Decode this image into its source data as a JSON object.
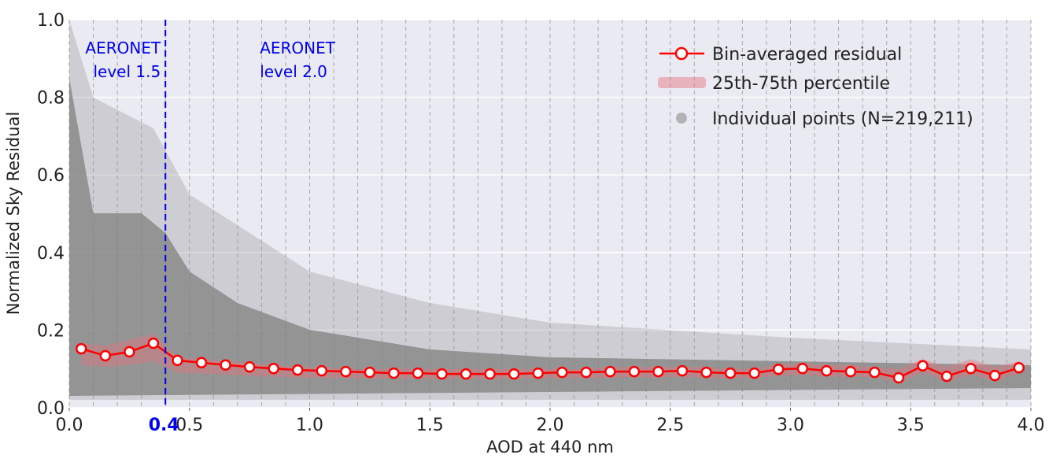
{
  "chart_data": {
    "type": "line",
    "xlabel": "AOD at 440 nm",
    "ylabel": "Normalized Sky Residual",
    "x": [
      0.05,
      0.15,
      0.25,
      0.35,
      0.45,
      0.55,
      0.65,
      0.75,
      0.85,
      0.95,
      1.05,
      1.15,
      1.25,
      1.35,
      1.45,
      1.55,
      1.65,
      1.75,
      1.85,
      1.95,
      2.05,
      2.15,
      2.25,
      2.35,
      2.45,
      2.55,
      2.65,
      2.75,
      2.85,
      2.95,
      3.05,
      3.15,
      3.25,
      3.35,
      3.45,
      3.55,
      3.65,
      3.75,
      3.85,
      3.95
    ],
    "series": [
      {
        "name": "Bin-averaged residual",
        "color": "#ff0000",
        "values": [
          0.152,
          0.134,
          0.144,
          0.166,
          0.122,
          0.116,
          0.11,
          0.105,
          0.101,
          0.097,
          0.095,
          0.093,
          0.091,
          0.089,
          0.089,
          0.087,
          0.087,
          0.087,
          0.087,
          0.089,
          0.091,
          0.091,
          0.093,
          0.093,
          0.093,
          0.095,
          0.091,
          0.089,
          0.089,
          0.099,
          0.101,
          0.095,
          0.093,
          0.091,
          0.077,
          0.108,
          0.081,
          0.101,
          0.083,
          0.103
        ]
      }
    ],
    "band": {
      "name": "25th-75th percentile",
      "color": "#e8707a",
      "upper": [
        0.165,
        0.16,
        0.175,
        0.19,
        0.13,
        0.125,
        0.12,
        0.115,
        0.11,
        0.105,
        0.105,
        0.1,
        0.1,
        0.1,
        0.1,
        0.1,
        0.1,
        0.1,
        0.1,
        0.1,
        0.1,
        0.1,
        0.105,
        0.105,
        0.105,
        0.105,
        0.105,
        0.1,
        0.1,
        0.11,
        0.115,
        0.11,
        0.11,
        0.105,
        0.1,
        0.125,
        0.105,
        0.125,
        0.105,
        0.12
      ],
      "lower": [
        0.11,
        0.105,
        0.11,
        0.12,
        0.09,
        0.088,
        0.085,
        0.082,
        0.08,
        0.078,
        0.077,
        0.076,
        0.075,
        0.075,
        0.075,
        0.074,
        0.074,
        0.074,
        0.074,
        0.075,
        0.076,
        0.076,
        0.077,
        0.078,
        0.078,
        0.079,
        0.077,
        0.076,
        0.076,
        0.082,
        0.085,
        0.08,
        0.08,
        0.078,
        0.065,
        0.09,
        0.068,
        0.085,
        0.07,
        0.088
      ]
    },
    "scatter_legend": {
      "name": "Individual points (N=219,211)",
      "color": "#8c8c8c"
    },
    "threshold": {
      "value": 0.4,
      "color": "#0000ee"
    },
    "annotations": [
      {
        "lines": [
          "AERONET",
          "level 1.5"
        ]
      },
      {
        "lines": [
          "AERONET",
          "level 2.0"
        ]
      }
    ],
    "bin_edges": [
      0,
      0.1,
      0.2,
      0.3,
      0.4,
      0.5,
      0.6,
      0.7,
      0.8,
      0.9,
      1,
      1.1,
      1.2,
      1.3,
      1.4,
      1.5,
      1.6,
      1.7,
      1.8,
      1.9,
      2,
      2.1,
      2.2,
      2.3,
      2.4,
      2.5,
      2.6,
      2.7,
      2.8,
      2.9,
      3,
      3.1,
      3.2,
      3.3,
      3.4,
      3.5,
      3.6,
      3.7,
      3.8,
      3.9,
      4
    ],
    "xlim": [
      0,
      4
    ],
    "ylim": [
      0,
      1
    ],
    "xticks": [
      {
        "value": 0,
        "label": "0.0"
      },
      0.5,
      {
        "value": 1,
        "label": "1.0"
      },
      1.5,
      {
        "value": 2,
        "label": "2.0"
      },
      2.5,
      {
        "value": 3,
        "label": "3.0"
      },
      3.5,
      {
        "value": 4,
        "label": "4.0"
      }
    ],
    "yticks": [
      {
        "value": 0,
        "label": "0.0"
      },
      0.2,
      0.4,
      0.6,
      0.8,
      {
        "value": 1,
        "label": "1.0"
      }
    ],
    "grid": true
  }
}
